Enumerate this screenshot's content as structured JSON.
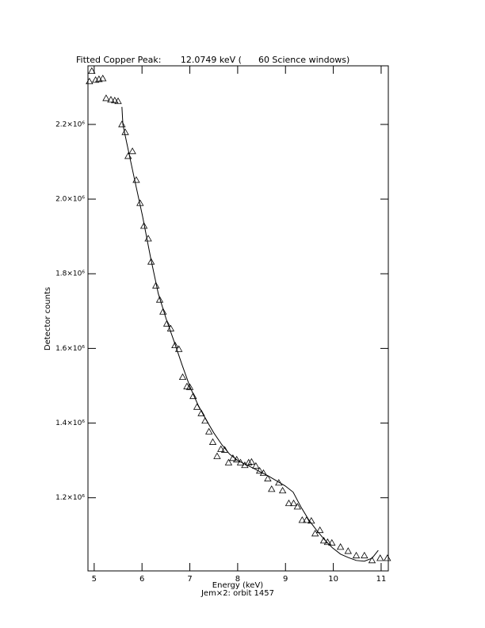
{
  "chart_data": {
    "type": "scatter",
    "title": "Fitted Copper Peak:       12.0749 keV (      60 Science windows)",
    "x_label": "Energy (keV)",
    "subtitle": "Jem×2: orbit 1457",
    "y_label": "Detector counts",
    "xlim": [
      4.87,
      11.15
    ],
    "ylim": [
      1004000,
      2357000
    ],
    "xticks": [
      5,
      6,
      7,
      8,
      9,
      10,
      11
    ],
    "yticks": [
      {
        "value": 1200000,
        "label": "1.2×10⁶"
      },
      {
        "value": 1400000,
        "label": "1.4×10⁶"
      },
      {
        "value": 1600000,
        "label": "1.6×10⁶"
      },
      {
        "value": 1800000,
        "label": "1.8×10⁶"
      },
      {
        "value": 2000000,
        "label": "2.0×10⁶"
      },
      {
        "value": 2200000,
        "label": "2.2×10⁶"
      }
    ],
    "series": [
      {
        "marker": "triangle",
        "color": "#000000",
        "x": [
          4.9,
          4.95,
          5.03,
          5.1,
          5.18,
          5.25,
          5.35,
          5.43,
          5.5,
          5.58,
          5.65,
          5.71,
          5.8,
          5.88,
          5.96,
          6.04,
          6.13,
          6.19,
          6.29,
          6.37,
          6.44,
          6.52,
          6.6,
          6.69,
          6.77,
          6.85,
          6.94,
          7.0,
          7.07,
          7.15,
          7.24,
          7.32,
          7.4,
          7.48,
          7.57,
          7.65,
          7.73,
          7.81,
          7.9,
          7.98,
          8.06,
          8.15,
          8.23,
          8.29,
          8.38,
          8.46,
          8.54,
          8.63,
          8.71,
          8.86,
          8.94,
          9.07,
          9.17,
          9.25,
          9.35,
          9.44,
          9.54,
          9.62,
          9.72,
          9.8,
          9.88,
          9.97,
          10.15,
          10.31,
          10.48,
          10.65,
          10.81,
          10.98,
          11.13
        ],
        "values": [
          2315000,
          2343000,
          2319000,
          2321000,
          2323000,
          2270000,
          2266000,
          2264000,
          2262000,
          2200000,
          2179000,
          2115000,
          2128000,
          2051000,
          1989000,
          1928000,
          1894000,
          1832000,
          1768000,
          1730000,
          1698000,
          1666000,
          1653000,
          1608000,
          1598000,
          1523000,
          1498000,
          1496000,
          1472000,
          1443000,
          1426000,
          1406000,
          1377000,
          1349000,
          1311000,
          1330000,
          1328000,
          1294000,
          1306000,
          1302000,
          1294000,
          1287000,
          1294000,
          1296000,
          1285000,
          1272000,
          1266000,
          1251000,
          1223000,
          1240000,
          1219000,
          1185000,
          1185000,
          1176000,
          1140000,
          1140000,
          1138000,
          1104000,
          1113000,
          1085000,
          1081000,
          1079000,
          1068000,
          1057000,
          1045000,
          1045000,
          1032000,
          1038000,
          1038000
        ]
      },
      {
        "marker": "line",
        "color": "#000000",
        "x": [
          5.58,
          5.6,
          5.68,
          5.84,
          6.01,
          6.18,
          6.34,
          6.51,
          6.67,
          6.84,
          7.0,
          7.17,
          7.33,
          7.5,
          7.67,
          7.83,
          8.0,
          8.33,
          8.66,
          8.99,
          9.16,
          9.32,
          9.49,
          9.65,
          9.82,
          9.98,
          10.15,
          10.31,
          10.48,
          10.65,
          10.81,
          10.94
        ],
        "values": [
          2247000,
          2200000,
          2151000,
          2055000,
          1955000,
          1843000,
          1747000,
          1677000,
          1619000,
          1555000,
          1498000,
          1449000,
          1411000,
          1374000,
          1342000,
          1317000,
          1300000,
          1279000,
          1257000,
          1232000,
          1215000,
          1176000,
          1140000,
          1113000,
          1087000,
          1066000,
          1049000,
          1040000,
          1032000,
          1030000,
          1038000,
          1059000
        ]
      }
    ]
  }
}
